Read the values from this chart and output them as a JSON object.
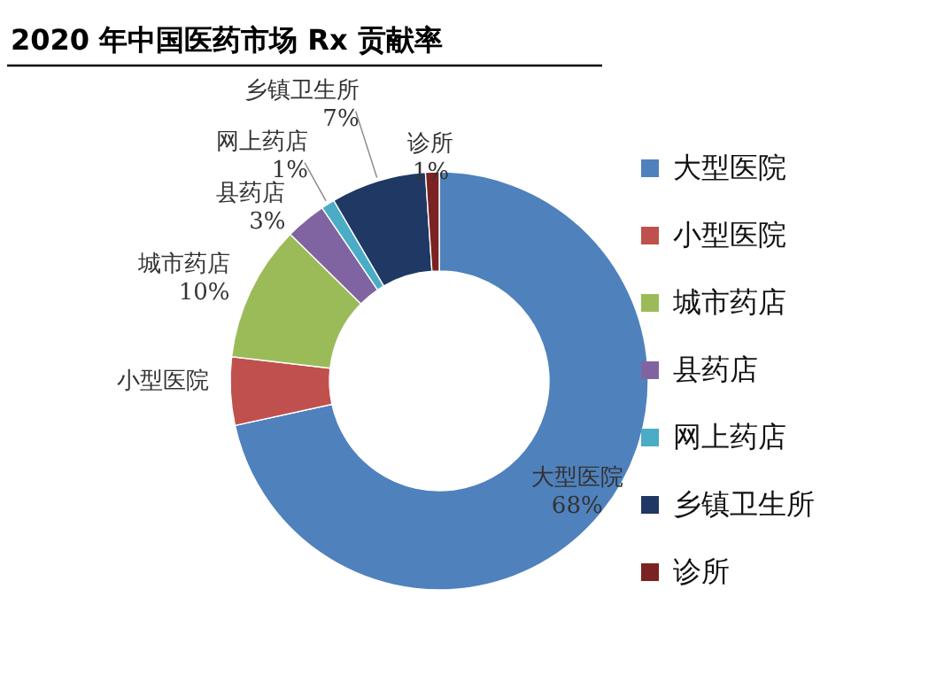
{
  "chart_data": {
    "type": "donut",
    "title": "2020 年中国医药市场 Rx 贡献率",
    "legend": "right",
    "categories": [
      "大型医院",
      "小型医院",
      "城市药店",
      "县药店",
      "网上药店",
      "乡镇卫生所",
      "诊所"
    ],
    "values": [
      68,
      5,
      10,
      3,
      1,
      7,
      1
    ],
    "colors": [
      "#4f81bd",
      "#c0504d",
      "#9bbb59",
      "#8064a2",
      "#4bacc6",
      "#1f3864",
      "#7b2222"
    ],
    "value_labels": [
      "68%",
      null,
      "10%",
      "3%",
      "1%",
      "7%",
      "1%"
    ]
  }
}
